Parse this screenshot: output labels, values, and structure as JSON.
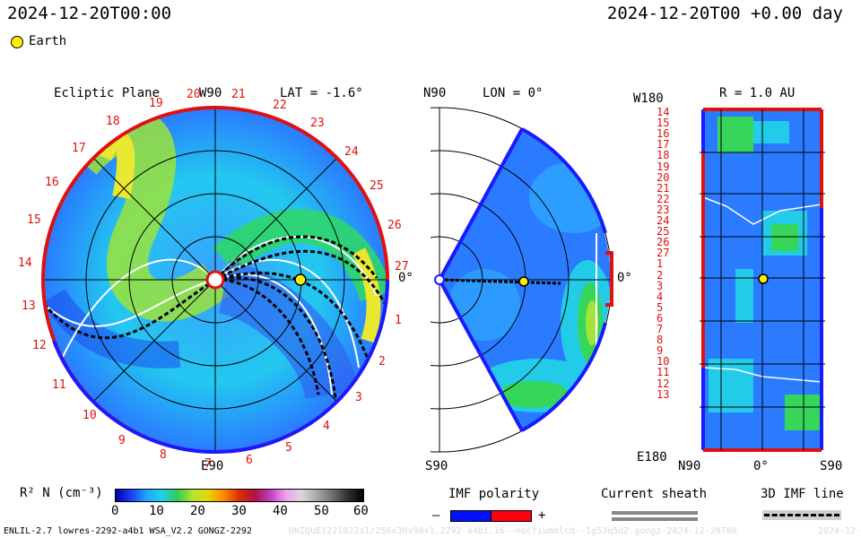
{
  "header": {
    "left_time": "2024-12-20T00:00",
    "right_time": "2024-12-20T00 +0.00 day"
  },
  "legend": {
    "earth_label": "Earth",
    "earth_color": "#ffee00"
  },
  "ecliptic": {
    "title": "Ecliptic Plane",
    "lat_label": "LAT = -1.6°",
    "top_label": "W90",
    "bottom_label": "E90",
    "right_label": "0°",
    "carrington": [
      "19",
      "20",
      "21",
      "22",
      "23",
      "24",
      "25",
      "26",
      "27",
      "1",
      "2",
      "3",
      "4",
      "5",
      "6",
      "7",
      "8",
      "9",
      "10",
      "11",
      "12",
      "13",
      "14",
      "15",
      "16",
      "17",
      "18"
    ]
  },
  "meridional": {
    "title": "LON = 0°",
    "top_label": "N90",
    "bottom_label": "S90",
    "right_label": "0°"
  },
  "sphere": {
    "title": "R = 1.0 AU",
    "top_left_label": "W180",
    "bottom_left_label": "E180",
    "x_labels": [
      "N90",
      "0°",
      "S90"
    ],
    "rows": [
      "14",
      "15",
      "16",
      "17",
      "18",
      "19",
      "20",
      "21",
      "22",
      "23",
      "24",
      "25",
      "26",
      "27",
      "1",
      "2",
      "3",
      "4",
      "5",
      "6",
      "7",
      "8",
      "9",
      "10",
      "11",
      "12",
      "13"
    ]
  },
  "colorbar": {
    "label": "R² N (cm⁻³)",
    "ticks": [
      "0",
      "10",
      "20",
      "30",
      "40",
      "50",
      "60"
    ]
  },
  "imf": {
    "title": "IMF polarity",
    "minus": "–",
    "plus": "+",
    "neg_color": "#0010ff",
    "pos_color": "#ff0010"
  },
  "sheath": {
    "title": "Current sheath"
  },
  "imf_line": {
    "title": "3D IMF line"
  },
  "footer": {
    "left": "ENLIL-2.7 lowres-2292-a4b1 WSA_V2.2 GONGZ-2292",
    "middle": "UNIQUE1221022a1/256x30x90x1.2292-a4b1.16--nocfiummlcd--1g53q5d2.gongz-2024-12-20T00",
    "right": "2024-12-21"
  }
}
